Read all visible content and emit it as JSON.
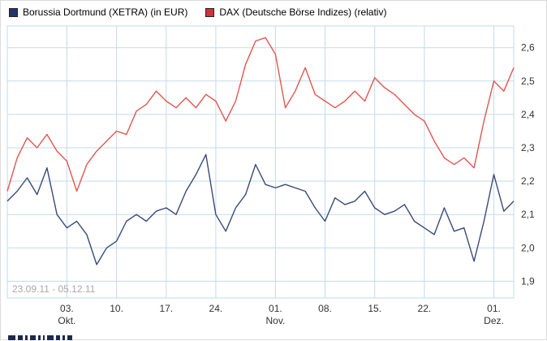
{
  "legend": {
    "entries": [
      {
        "label": "Borussia Dortmund (XETRA) (in EUR)",
        "swatch_color": "#24356b"
      },
      {
        "label": "DAX (Deutsche Börse Indizes) (relativ)",
        "swatch_color": "#cf3338"
      }
    ]
  },
  "chart_data": {
    "type": "line",
    "title": "",
    "date_range": "23.09.11 - 05.12.11",
    "watermark": "23.09.11 - 05.12.11",
    "grid": true,
    "grid_color": "#c6d9ec",
    "background_color": "#ffffff",
    "axis_text_color": "#333333",
    "watermark_color": "#a8a8a8",
    "legend_position": "top-left",
    "y_axis": {
      "side": "right",
      "min": 1.9,
      "max": 2.6,
      "step": 0.1,
      "ticks": [
        {
          "value": 2.6,
          "label": "2,6"
        },
        {
          "value": 2.5,
          "label": "2,5"
        },
        {
          "value": 2.4,
          "label": "2,4"
        },
        {
          "value": 2.3,
          "label": "2,3"
        },
        {
          "value": 2.2,
          "label": "2,2"
        },
        {
          "value": 2.1,
          "label": "2,1"
        },
        {
          "value": 2.0,
          "label": "2,0"
        },
        {
          "value": 1.9,
          "label": "1,9"
        }
      ]
    },
    "x_axis": {
      "ticks": [
        {
          "index": 6,
          "day": "03.",
          "month": "Okt."
        },
        {
          "index": 11,
          "day": "10.",
          "month": ""
        },
        {
          "index": 16,
          "day": "17.",
          "month": ""
        },
        {
          "index": 21,
          "day": "24.",
          "month": ""
        },
        {
          "index": 27,
          "day": "01.",
          "month": "Nov."
        },
        {
          "index": 32,
          "day": "08.",
          "month": ""
        },
        {
          "index": 37,
          "day": "15.",
          "month": ""
        },
        {
          "index": 42,
          "day": "22.",
          "month": ""
        },
        {
          "index": 49,
          "day": "01.",
          "month": "Dez."
        }
      ]
    },
    "series": [
      {
        "name": "Borussia Dortmund (XETRA) (in EUR)",
        "color": "#3a4a78",
        "values": [
          2.14,
          2.17,
          2.21,
          2.16,
          2.24,
          2.1,
          2.06,
          2.08,
          2.04,
          1.95,
          2.0,
          2.02,
          2.08,
          2.1,
          2.08,
          2.11,
          2.12,
          2.1,
          2.17,
          2.22,
          2.28,
          2.1,
          2.05,
          2.12,
          2.16,
          2.25,
          2.19,
          2.18,
          2.19,
          2.18,
          2.17,
          2.12,
          2.08,
          2.15,
          2.13,
          2.14,
          2.17,
          2.12,
          2.1,
          2.11,
          2.13,
          2.08,
          2.06,
          2.04,
          2.12,
          2.05,
          2.06,
          1.96,
          2.08,
          2.22,
          2.11,
          2.14
        ]
      },
      {
        "name": "DAX (Deutsche Börse Indizes) (relativ)",
        "color": "#e2564f",
        "values": [
          2.17,
          2.27,
          2.33,
          2.3,
          2.34,
          2.29,
          2.26,
          2.17,
          2.25,
          2.29,
          2.32,
          2.35,
          2.34,
          2.41,
          2.43,
          2.47,
          2.44,
          2.42,
          2.45,
          2.42,
          2.46,
          2.44,
          2.38,
          2.44,
          2.55,
          2.62,
          2.63,
          2.58,
          2.42,
          2.47,
          2.54,
          2.46,
          2.44,
          2.42,
          2.44,
          2.47,
          2.44,
          2.51,
          2.48,
          2.46,
          2.43,
          2.4,
          2.38,
          2.32,
          2.27,
          2.25,
          2.27,
          2.24,
          2.38,
          2.5,
          2.47,
          2.54
        ]
      }
    ]
  }
}
